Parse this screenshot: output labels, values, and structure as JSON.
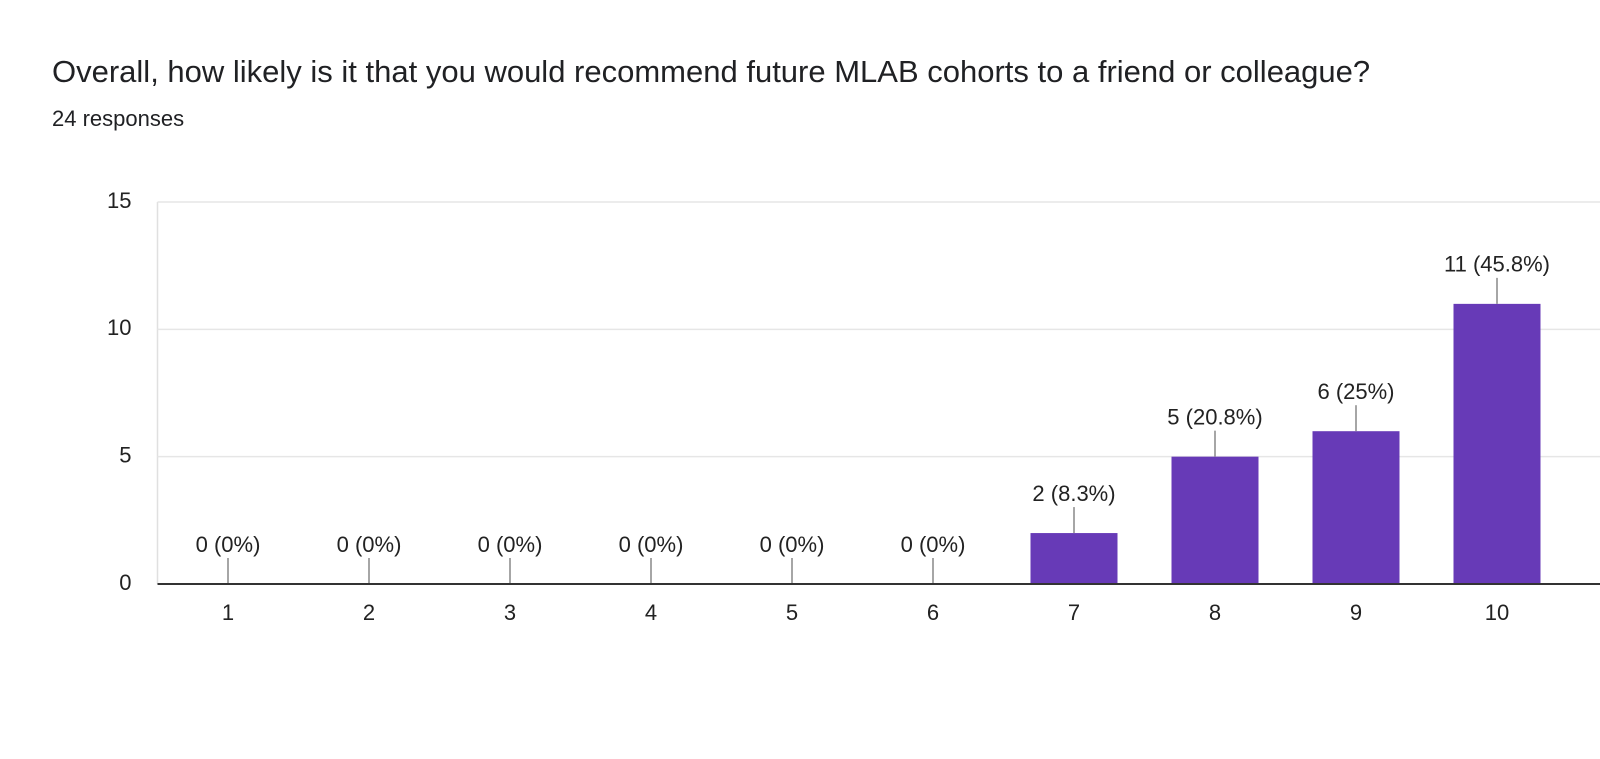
{
  "chart_data": {
    "type": "bar",
    "title": "Overall, how likely is it that you would recommend future MLAB cohorts to a friend or colleague?",
    "subtitle": "24 responses",
    "categories": [
      "1",
      "2",
      "3",
      "4",
      "5",
      "6",
      "7",
      "8",
      "9",
      "10"
    ],
    "values": [
      0,
      0,
      0,
      0,
      0,
      0,
      2,
      5,
      6,
      11
    ],
    "value_labels": [
      "0 (0%)",
      "0 (0%)",
      "0 (0%)",
      "0 (0%)",
      "0 (0%)",
      "0 (0%)",
      "2 (8.3%)",
      "5 (20.8%)",
      "6 (25%)",
      "11 (45.8%)"
    ],
    "color": "#673ab7",
    "ylim": [
      0,
      15
    ],
    "yticks": [
      0,
      5,
      10,
      15
    ],
    "grid": true
  }
}
